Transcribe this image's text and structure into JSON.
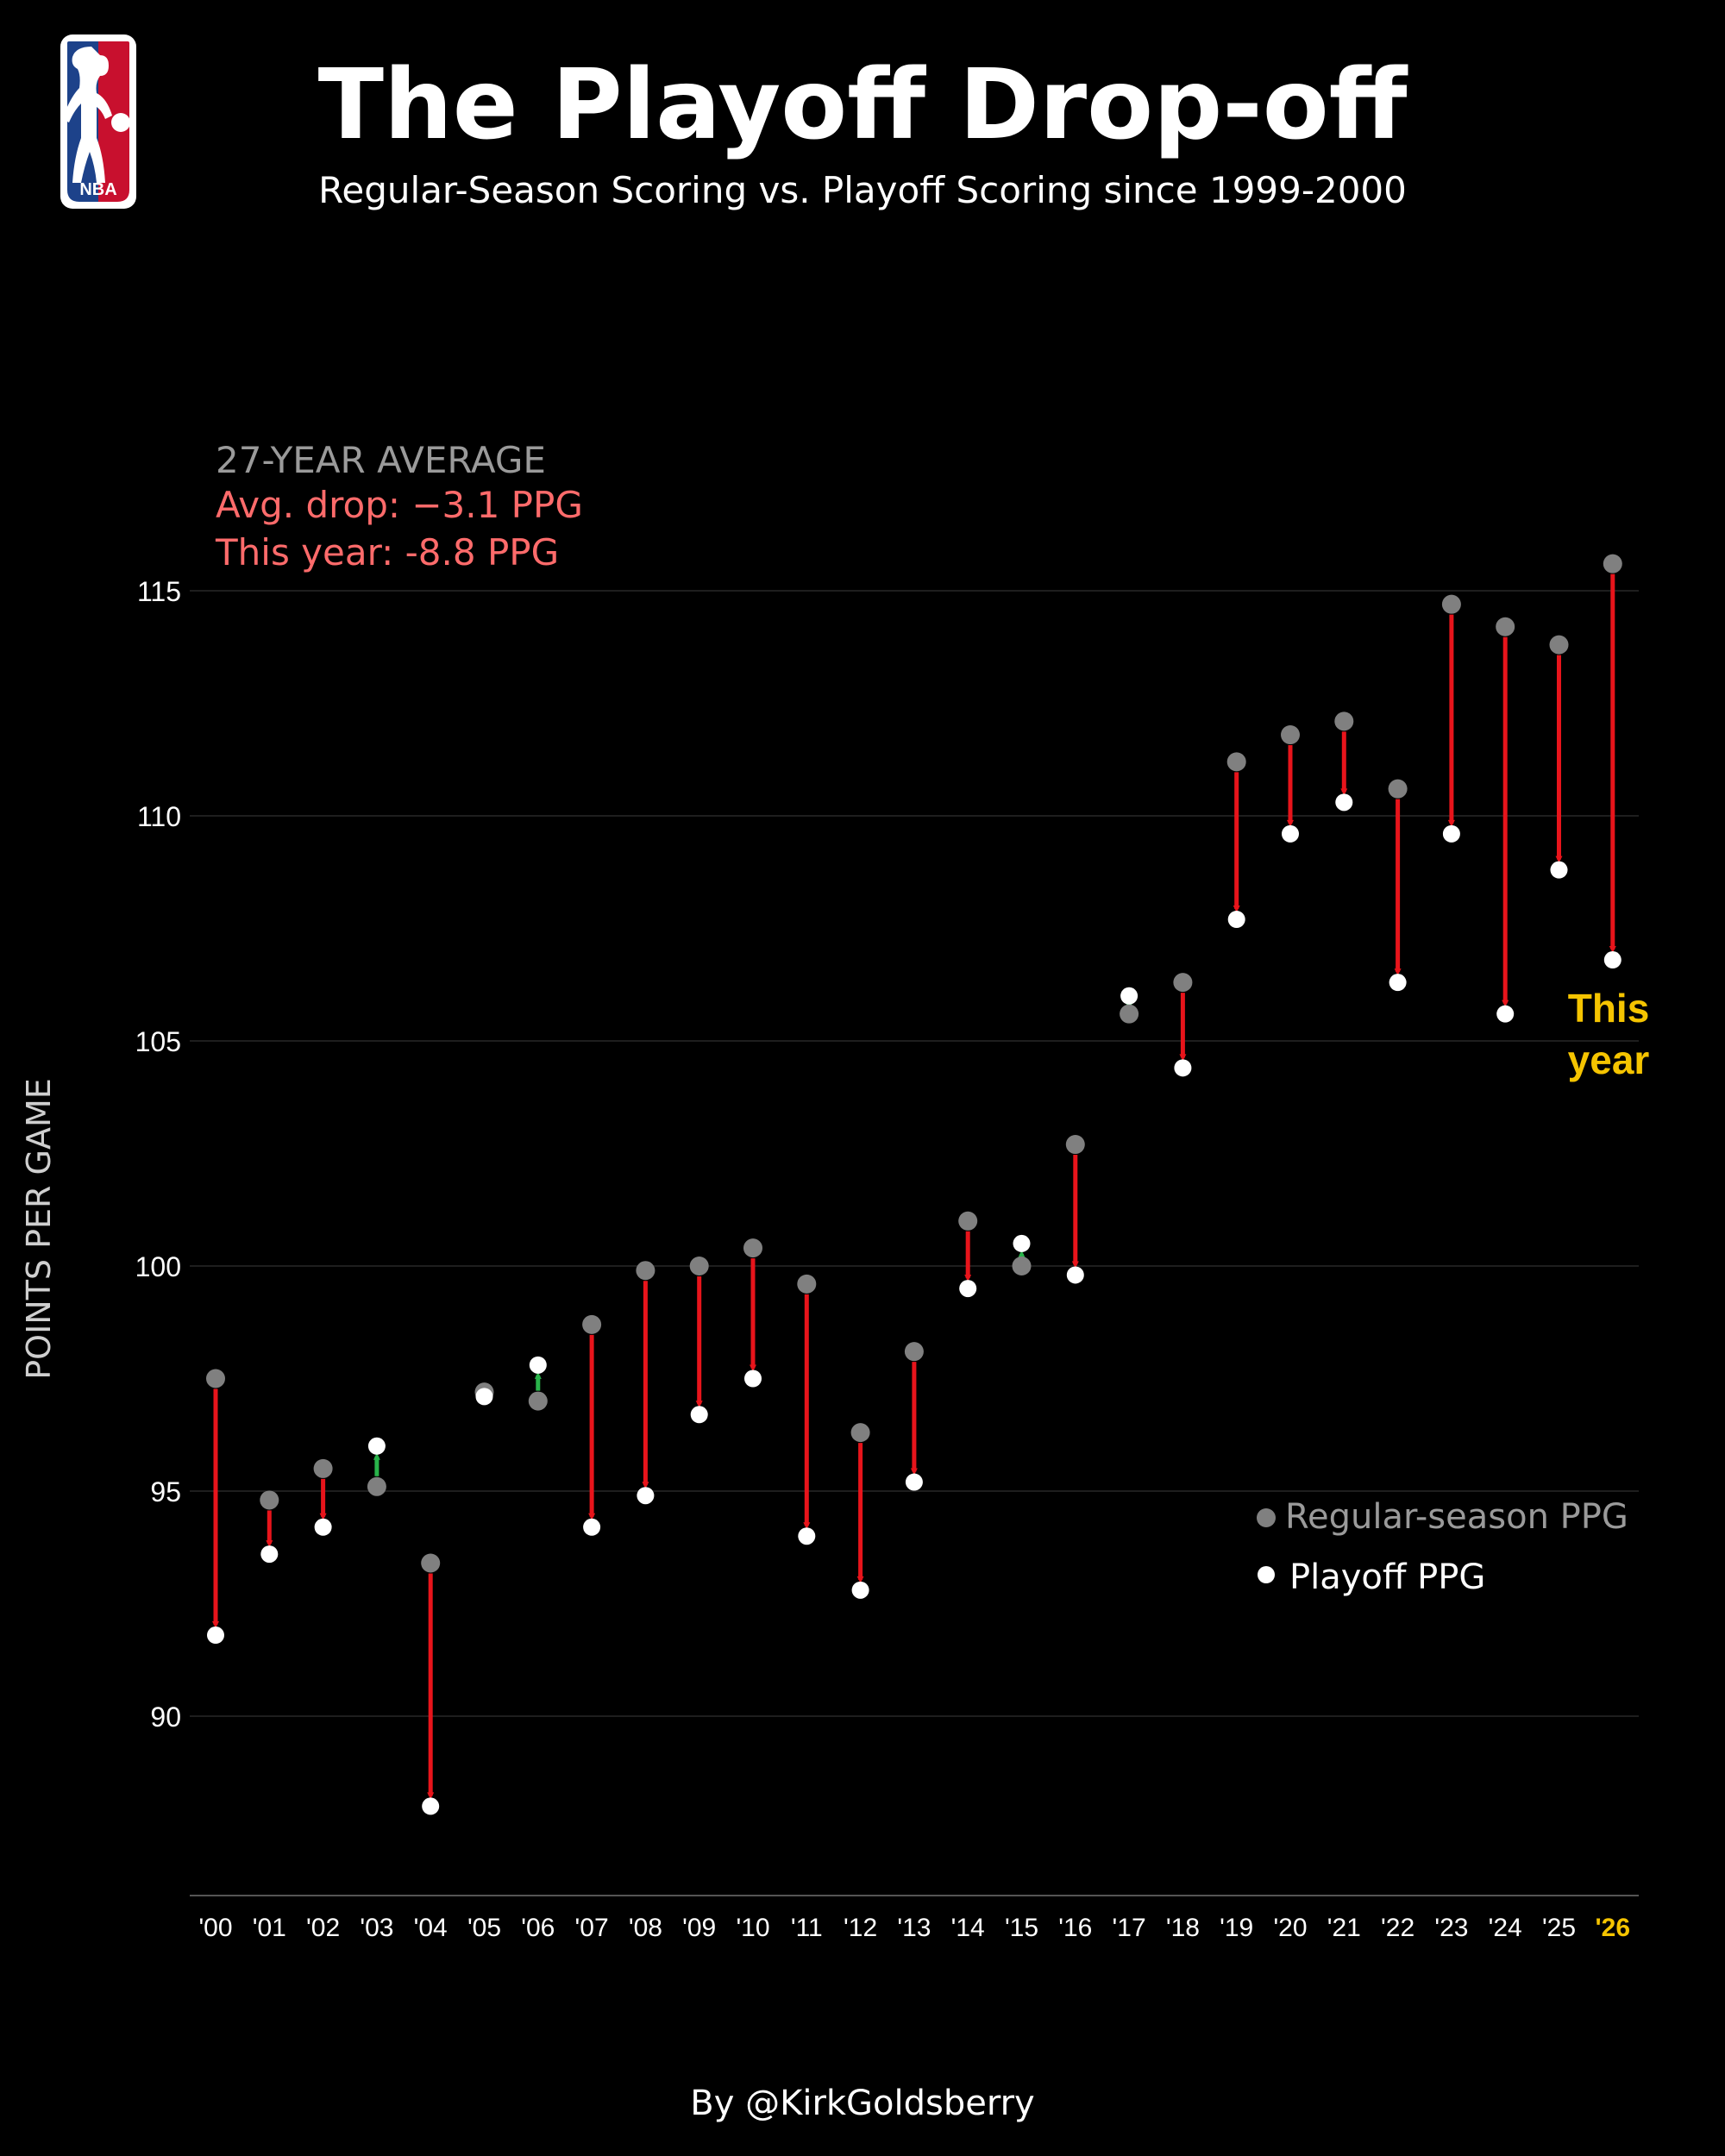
{
  "title": "The Playoff Drop-off",
  "subtitle": "Regular-Season Scoring vs. Playoff Scoring since 1999-2000",
  "logo_text": "NBA",
  "summary": {
    "heading": "27-YEAR AVERAGE",
    "avg_drop": "Avg. drop: −3.1 PPG",
    "this_year": "This year: -8.8 PPG"
  },
  "annotation": {
    "line1": "This",
    "line2": "year"
  },
  "credit": "By @KirkGoldsberry",
  "colors": {
    "background": "#000000",
    "regular": "#808080",
    "playoff": "#ffffff",
    "drop": "#e8141b",
    "rise": "#29b34a",
    "highlight": "#f5c400",
    "summary_drop": "#ff6b6b"
  },
  "chart_data": {
    "type": "dot-arrow",
    "ylabel": "POINTS PER GAME",
    "xlabel": "",
    "ylim": [
      86,
      118
    ],
    "yticks": [
      90,
      95,
      100,
      105,
      110,
      115
    ],
    "grid": true,
    "legend_position": "right",
    "categories": [
      "'00",
      "'01",
      "'02",
      "'03",
      "'04",
      "'05",
      "'06",
      "'07",
      "'08",
      "'09",
      "'10",
      "'11",
      "'12",
      "'13",
      "'14",
      "'15",
      "'16",
      "'17",
      "'18",
      "'19",
      "'20",
      "'21",
      "'22",
      "'23",
      "'24",
      "'25",
      "'26"
    ],
    "highlight_category": "'26",
    "series": [
      {
        "name": "Regular-season PPG",
        "values": [
          97.5,
          94.8,
          95.5,
          95.1,
          93.4,
          97.2,
          97.0,
          98.7,
          99.9,
          100.0,
          100.4,
          99.6,
          96.3,
          98.1,
          101.0,
          100.0,
          102.7,
          105.6,
          106.3,
          111.2,
          111.8,
          112.1,
          110.6,
          114.7,
          114.2,
          113.8,
          115.6
        ]
      },
      {
        "name": "Playoff PPG",
        "values": [
          91.8,
          93.6,
          94.2,
          96.0,
          88.0,
          97.1,
          97.8,
          94.2,
          94.9,
          96.7,
          97.5,
          94.0,
          92.8,
          95.2,
          99.5,
          100.5,
          99.8,
          106.0,
          104.4,
          107.7,
          109.6,
          110.3,
          106.3,
          109.6,
          105.6,
          108.8,
          106.8
        ]
      }
    ]
  }
}
